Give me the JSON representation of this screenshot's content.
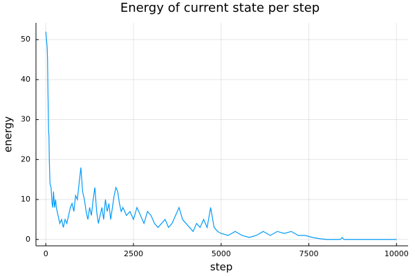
{
  "chart_data": {
    "type": "line",
    "title": "Energy of current state per step",
    "xlabel": "step",
    "ylabel": "energy",
    "xlim": [
      -280,
      10330
    ],
    "ylim": [
      -1.6,
      54.2
    ],
    "xticks": [
      0,
      2500,
      5000,
      7500,
      10000
    ],
    "yticks": [
      0,
      10,
      20,
      30,
      40,
      50
    ],
    "grid": true,
    "series": [
      {
        "color": "#009af9",
        "x": [
          0,
          10,
          20,
          40,
          50,
          60,
          80,
          90,
          100,
          120,
          150,
          180,
          200,
          220,
          250,
          280,
          300,
          350,
          400,
          450,
          500,
          550,
          600,
          650,
          700,
          750,
          800,
          850,
          900,
          950,
          1000,
          1050,
          1100,
          1150,
          1200,
          1250,
          1300,
          1350,
          1400,
          1450,
          1500,
          1550,
          1600,
          1650,
          1700,
          1750,
          1800,
          1850,
          1900,
          1950,
          2000,
          2050,
          2100,
          2150,
          2200,
          2300,
          2400,
          2500,
          2600,
          2700,
          2800,
          2900,
          3000,
          3100,
          3200,
          3300,
          3400,
          3500,
          3600,
          3700,
          3800,
          3900,
          4000,
          4100,
          4200,
          4300,
          4400,
          4500,
          4600,
          4700,
          4800,
          4900,
          5000,
          5200,
          5400,
          5600,
          5800,
          6000,
          6200,
          6400,
          6600,
          6800,
          7000,
          7200,
          7400,
          7600,
          7800,
          8000,
          8400,
          8450,
          8500,
          9000,
          10000
        ],
        "values": [
          52,
          51,
          50,
          48,
          45,
          38,
          27,
          26,
          20,
          14,
          13,
          9,
          8,
          12,
          8,
          10,
          8,
          6,
          4,
          5,
          3,
          5,
          4,
          6,
          8,
          9,
          7,
          11,
          10,
          14,
          18,
          12,
          10,
          7,
          5,
          8,
          6,
          10,
          13,
          7,
          4,
          6,
          8,
          5,
          10,
          7,
          9,
          5,
          8,
          11,
          13,
          12,
          9,
          7,
          8,
          6,
          7,
          5,
          8,
          6,
          4,
          7,
          6,
          4,
          3,
          4,
          5,
          3,
          4,
          6,
          8,
          5,
          4,
          3,
          2,
          4,
          3,
          5,
          3,
          8,
          3,
          2,
          1.5,
          1,
          2,
          1,
          0.5,
          1,
          2,
          1,
          2,
          1.5,
          2,
          1,
          1,
          0.5,
          0.2,
          0,
          0,
          0.5,
          0,
          0,
          0
        ]
      }
    ]
  }
}
